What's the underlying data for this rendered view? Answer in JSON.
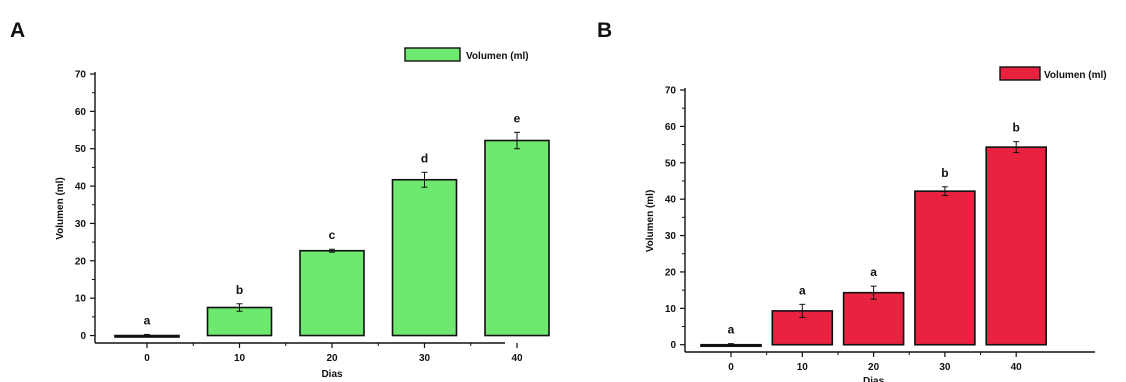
{
  "chart_data": [
    {
      "panel_label": "A",
      "type": "bar",
      "xlabel": "Dias",
      "ylabel": "Volumen (ml)",
      "categories": [
        "0",
        "10",
        "20",
        "30",
        "40"
      ],
      "series": [
        {
          "name": "Volumen (ml)",
          "color": "#6ee86e",
          "values": [
            0,
            7.5,
            22.7,
            41.7,
            52.2
          ],
          "errors": [
            0.3,
            1.0,
            0.4,
            2.0,
            2.2
          ],
          "labels": [
            "a",
            "b",
            "c",
            "d",
            "e"
          ]
        }
      ],
      "ylim": [
        -2,
        70
      ],
      "yticks": [
        0,
        10,
        20,
        30,
        40,
        50,
        60,
        70
      ],
      "grid": false,
      "legend_position": "top-right"
    },
    {
      "panel_label": "B",
      "type": "bar",
      "xlabel": "Dias",
      "ylabel": "Volumen (ml)",
      "categories": [
        "0",
        "10",
        "20",
        "30",
        "40"
      ],
      "series": [
        {
          "name": "Volumen (ml)",
          "color": "#e8223f",
          "values": [
            0,
            9.3,
            14.3,
            42.2,
            54.3
          ],
          "errors": [
            0.3,
            1.8,
            1.8,
            1.2,
            1.5
          ],
          "labels": [
            "a",
            "a",
            "a",
            "b",
            "b"
          ]
        }
      ],
      "ylim": [
        -2,
        70
      ],
      "yticks": [
        0,
        10,
        20,
        30,
        40,
        50,
        60,
        70
      ],
      "grid": false,
      "legend_position": "top-right"
    }
  ]
}
